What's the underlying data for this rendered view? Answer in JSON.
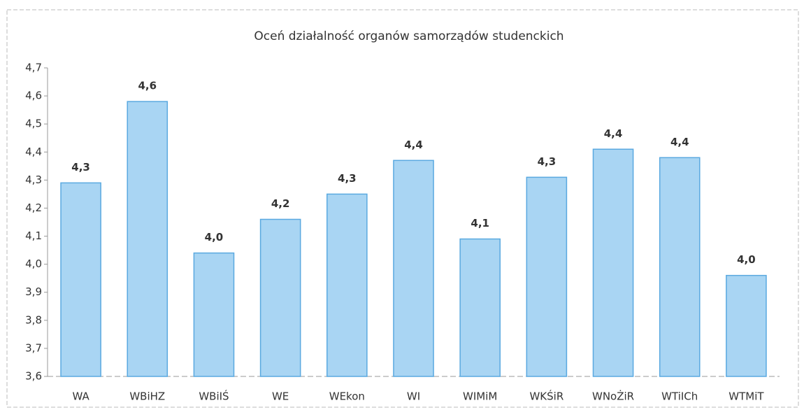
{
  "chart_data": {
    "type": "bar",
    "title": "Oceń działalność organów samorządów studenckich",
    "categories": [
      "WA",
      "WBiHZ",
      "WBiIŚ",
      "WE",
      "WEkon",
      "WI",
      "WIMiM",
      "WKŚiR",
      "WNoŻiR",
      "WTiICh",
      "WTMiT"
    ],
    "values": [
      4.29,
      4.58,
      4.04,
      4.16,
      4.25,
      4.37,
      4.09,
      4.31,
      4.41,
      4.38,
      3.96
    ],
    "value_labels": [
      "4,3",
      "4,6",
      "4,0",
      "4,2",
      "4,3",
      "4,4",
      "4,1",
      "4,3",
      "4,4",
      "4,4",
      "4,0"
    ],
    "color": "#a9d5f3",
    "ylim": [
      3.6,
      4.7
    ],
    "yticks": [
      {
        "value": 3.6,
        "label": "3,6"
      },
      {
        "value": 3.7,
        "label": "3,7"
      },
      {
        "value": 3.8,
        "label": "3,8"
      },
      {
        "value": 3.9,
        "label": "3,9"
      },
      {
        "value": 4.0,
        "label": "4,0"
      },
      {
        "value": 4.1,
        "label": "4,1"
      },
      {
        "value": 4.2,
        "label": "4,2"
      },
      {
        "value": 4.3,
        "label": "4,3"
      },
      {
        "value": 4.4,
        "label": "4,4"
      },
      {
        "value": 4.5,
        "label": "4,5"
      },
      {
        "value": 4.6,
        "label": "4,6"
      },
      {
        "value": 4.7,
        "label": "4,7"
      }
    ],
    "grid": false
  }
}
